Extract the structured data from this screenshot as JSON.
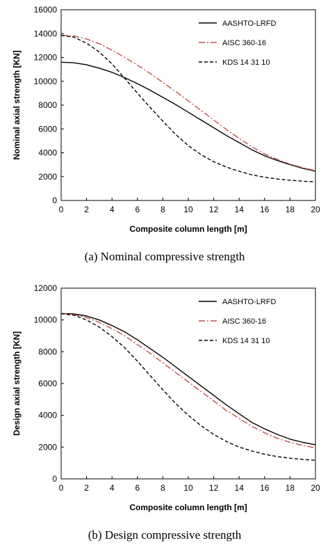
{
  "chart_data": [
    {
      "type": "line",
      "caption": "(a) Nominal compressive strength",
      "xlabel": "Composite column length [m]",
      "ylabel": "Nominal  axial  strength [KN]",
      "xlim": [
        0,
        20
      ],
      "ylim": [
        0,
        16000
      ],
      "xticks": [
        0,
        2,
        4,
        6,
        8,
        10,
        12,
        14,
        16,
        18,
        20
      ],
      "yticks": [
        0,
        2000,
        4000,
        6000,
        8000,
        10000,
        12000,
        14000,
        16000
      ],
      "grid": false,
      "legend_position": "top-right",
      "x": [
        0,
        1,
        2,
        3,
        4,
        5,
        6,
        7,
        8,
        9,
        10,
        11,
        12,
        13,
        14,
        15,
        16,
        17,
        18,
        19,
        20
      ],
      "series": [
        {
          "name": "AASHTO-LRFD",
          "style": "solid",
          "color": "#000000",
          "values": [
            11600,
            11550,
            11380,
            11100,
            10750,
            10300,
            9800,
            9250,
            8650,
            8050,
            7400,
            6750,
            6100,
            5450,
            4850,
            4250,
            3750,
            3350,
            3000,
            2700,
            2450
          ]
        },
        {
          "name": "AISC 360-16",
          "style": "dashdot",
          "color": "#c0504d",
          "values": [
            13850,
            13800,
            13550,
            13150,
            12600,
            12000,
            11350,
            10650,
            9900,
            9150,
            8350,
            7550,
            6750,
            5950,
            5200,
            4500,
            3900,
            3450,
            3050,
            2750,
            2500
          ]
        },
        {
          "name": "KDS 14 31 10",
          "style": "dashed",
          "color": "#000000",
          "values": [
            13850,
            13700,
            13200,
            12450,
            11450,
            10250,
            9000,
            7800,
            6650,
            5550,
            4600,
            3850,
            3250,
            2800,
            2450,
            2150,
            1950,
            1800,
            1700,
            1620,
            1560
          ]
        }
      ]
    },
    {
      "type": "line",
      "caption": "(b) Design compressive strength",
      "xlabel": "Composite column length [m]",
      "ylabel": "Design  axial  strength [KN]",
      "xlim": [
        0,
        20
      ],
      "ylim": [
        0,
        12000
      ],
      "xticks": [
        0,
        2,
        4,
        6,
        8,
        10,
        12,
        14,
        16,
        18,
        20
      ],
      "yticks": [
        0,
        2000,
        4000,
        6000,
        8000,
        10000,
        12000
      ],
      "grid": false,
      "legend_position": "top-right",
      "x": [
        0,
        1,
        2,
        3,
        4,
        5,
        6,
        7,
        8,
        9,
        10,
        11,
        12,
        13,
        14,
        15,
        16,
        17,
        18,
        19,
        20
      ],
      "series": [
        {
          "name": "AASHTO-LRFD",
          "style": "solid",
          "color": "#000000",
          "values": [
            10400,
            10380,
            10250,
            10000,
            9650,
            9250,
            8750,
            8200,
            7650,
            7050,
            6450,
            5850,
            5250,
            4650,
            4100,
            3550,
            3150,
            2800,
            2500,
            2300,
            2150
          ]
        },
        {
          "name": "AISC 360-16",
          "style": "dashdot",
          "color": "#c0504d",
          "values": [
            10400,
            10350,
            10150,
            9850,
            9450,
            9000,
            8450,
            7900,
            7300,
            6700,
            6100,
            5500,
            4900,
            4300,
            3800,
            3300,
            2900,
            2550,
            2300,
            2100,
            1950
          ]
        },
        {
          "name": "KDS 14 31 10",
          "style": "dashed",
          "color": "#000000",
          "values": [
            10400,
            10300,
            10000,
            9550,
            8950,
            8250,
            7400,
            6500,
            5600,
            4750,
            4000,
            3350,
            2800,
            2350,
            2000,
            1750,
            1550,
            1400,
            1300,
            1220,
            1170
          ]
        }
      ]
    }
  ]
}
